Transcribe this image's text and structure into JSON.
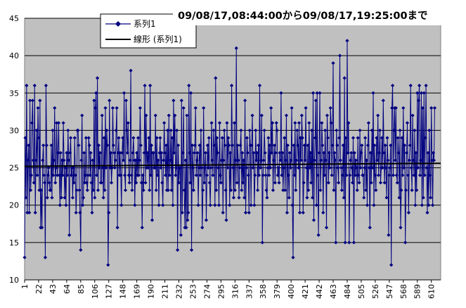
{
  "chart_data": {
    "type": "line",
    "title": "09/08/17,08:44:00から09/08/17,19:25:00まで",
    "xlabel": "",
    "ylabel": "",
    "ylim": [
      10,
      45
    ],
    "yticks": [
      "10",
      "15",
      "20",
      "25",
      "30",
      "35",
      "40",
      "45"
    ],
    "xlim": [
      1,
      624
    ],
    "xticks": [
      "1",
      "22",
      "43",
      "64",
      "85",
      "106",
      "127",
      "148",
      "169",
      "190",
      "211",
      "232",
      "253",
      "274",
      "295",
      "316",
      "337",
      "358",
      "379",
      "400",
      "421",
      "442",
      "463",
      "484",
      "505",
      "526",
      "547",
      "568",
      "589",
      "610"
    ],
    "grid": true,
    "legend_position": "top-left-inside",
    "colors": {
      "series": "#000080",
      "trend": "#000000",
      "plot_background": "#c0c0c0",
      "gridline": "#000000"
    },
    "series": [
      {
        "name": "系列1",
        "marker": "diamond",
        "x_start": 1,
        "values": [
          13,
          29,
          21,
          36,
          19,
          26,
          28,
          19,
          34,
          22,
          24,
          31,
          34,
          26,
          23,
          36,
          19,
          26,
          30,
          24,
          33,
          29,
          22,
          34,
          17,
          22,
          17,
          26,
          28,
          24,
          23,
          13,
          36,
          28,
          21,
          24,
          25,
          23,
          22,
          22,
          28,
          21,
          30,
          24,
          26,
          33,
          23,
          25,
          31,
          24,
          27,
          31,
          24,
          20,
          27,
          21,
          26,
          24,
          31,
          26,
          21,
          25,
          20,
          27,
          24,
          30,
          26,
          16,
          27,
          29,
          24,
          25,
          21,
          25,
          23,
          29,
          24,
          19,
          22,
          30,
          30,
          28,
          22,
          19,
          14,
          26,
          32,
          20,
          21,
          27,
          23,
          24,
          29,
          23,
          22,
          24,
          29,
          28,
          24,
          27,
          23,
          19,
          26,
          22,
          34,
          21,
          33,
          35,
          24,
          37,
          22,
          28,
          25,
          27,
          23,
          23,
          32,
          25,
          21,
          29,
          22,
          33,
          25,
          30,
          28,
          12,
          19,
          34,
          25,
          27,
          23,
          25,
          33,
          28,
          27,
          25,
          26,
          30,
          33,
          17,
          27,
          29,
          24,
          27,
          24,
          20,
          27,
          29,
          26,
          35,
          24,
          22,
          34,
          30,
          27,
          31,
          24,
          23,
          26,
          38,
          24,
          22,
          27,
          29,
          26,
          20,
          26,
          23,
          27,
          24,
          29,
          24,
          26,
          33,
          28,
          23,
          17,
          24,
          22,
          27,
          36,
          23,
          32,
          25,
          27,
          25,
          29,
          22,
          36,
          24,
          28,
          18,
          27,
          27,
          25,
          25,
          32,
          22,
          29,
          24,
          26,
          20,
          27,
          29,
          25,
          27,
          23,
          20,
          26,
          31,
          27,
          24,
          28,
          22,
          30,
          22,
          32,
          24,
          26,
          30,
          22,
          29,
          20,
          34,
          27,
          32,
          24,
          25,
          30,
          14,
          28,
          23,
          25,
          25,
          16,
          34,
          19,
          27,
          33,
          22,
          17,
          26,
          17,
          32,
          18,
          19,
          36,
          27,
          23,
          35,
          14,
          28,
          25,
          22,
          27,
          28,
          33,
          24,
          26,
          27,
          20,
          25,
          28,
          24,
          30,
          25,
          17,
          22,
          33,
          23,
          25,
          27,
          18,
          24,
          28,
          25,
          29,
          23,
          20,
          25,
          31,
          26,
          24,
          30,
          28,
          20,
          37,
          22,
          29,
          27,
          25,
          20,
          31,
          24,
          23,
          26,
          29,
          19,
          26,
          30,
          28,
          22,
          18,
          31,
          25,
          29,
          28,
          20,
          27,
          22,
          36,
          28,
          25,
          21,
          31,
          22,
          26,
          41,
          23,
          28,
          26,
          21,
          25,
          28,
          30,
          22,
          27,
          23,
          26,
          21,
          34,
          19,
          25,
          29,
          27,
          24,
          19,
          30,
          28,
          20,
          28,
          32,
          25,
          27,
          20,
          24,
          30,
          26,
          27,
          22,
          28,
          24,
          36,
          25,
          26,
          32,
          15,
          24,
          26,
          30,
          27,
          24,
          22,
          21,
          25,
          29,
          24,
          28,
          25,
          33,
          27,
          31,
          22,
          26,
          28,
          23,
          27,
          31,
          30,
          24,
          25,
          23,
          27,
          26,
          35,
          24,
          27,
          22,
          25,
          29,
          22,
          26,
          32,
          19,
          28,
          24,
          21,
          27,
          25,
          26,
          33,
          20,
          13,
          28,
          24,
          31,
          22,
          26,
          30,
          28,
          25,
          31,
          19,
          29,
          26,
          32,
          29,
          19,
          23,
          28,
          26,
          33,
          25,
          21,
          28,
          22,
          31,
          25,
          27,
          23,
          30,
          21,
          35,
          18,
          26,
          29,
          34,
          20,
          35,
          24,
          16,
          27,
          35,
          22,
          26,
          31,
          28,
          19,
          27,
          24,
          30,
          26,
          17,
          32,
          29,
          23,
          27,
          25,
          33,
          31,
          24,
          28,
          39,
          22,
          27,
          26,
          15,
          30,
          28,
          25,
          23,
          29,
          40,
          26,
          25,
          22,
          24,
          28,
          21,
          37,
          15,
          29,
          24,
          42,
          27,
          31,
          15,
          24,
          26,
          27,
          25,
          23,
          29,
          15,
          27,
          24,
          26,
          25,
          22,
          29,
          24,
          23,
          30,
          25,
          27,
          28,
          24,
          24,
          21,
          25,
          29,
          22,
          26,
          20,
          28,
          31,
          25,
          17,
          27,
          23,
          30,
          25,
          35,
          20,
          28,
          24,
          22,
          29,
          26,
          32,
          24,
          27,
          30,
          23,
          25,
          29,
          25,
          34,
          27,
          23,
          28,
          25,
          21,
          29,
          26,
          16,
          24,
          25,
          28,
          12,
          33,
          36,
          24,
          30,
          33,
          26,
          33,
          24,
          23,
          29,
          27,
          21,
          30,
          17,
          22,
          29,
          24,
          33,
          25,
          28,
          15,
          22,
          27,
          31,
          24,
          19,
          26,
          28,
          36,
          25,
          22,
          32,
          26,
          24,
          30,
          20,
          27,
          22,
          35,
          25,
          34,
          36,
          24,
          26,
          35,
          20,
          33,
          21,
          35,
          24,
          29,
          36,
          25,
          19,
          27,
          20,
          30,
          24,
          21,
          33,
          26,
          20,
          27,
          26,
          33
        ]
      },
      {
        "name": "線形 (系列1)",
        "type": "trendline",
        "start_value": 25.2,
        "end_value": 25.6
      }
    ]
  }
}
